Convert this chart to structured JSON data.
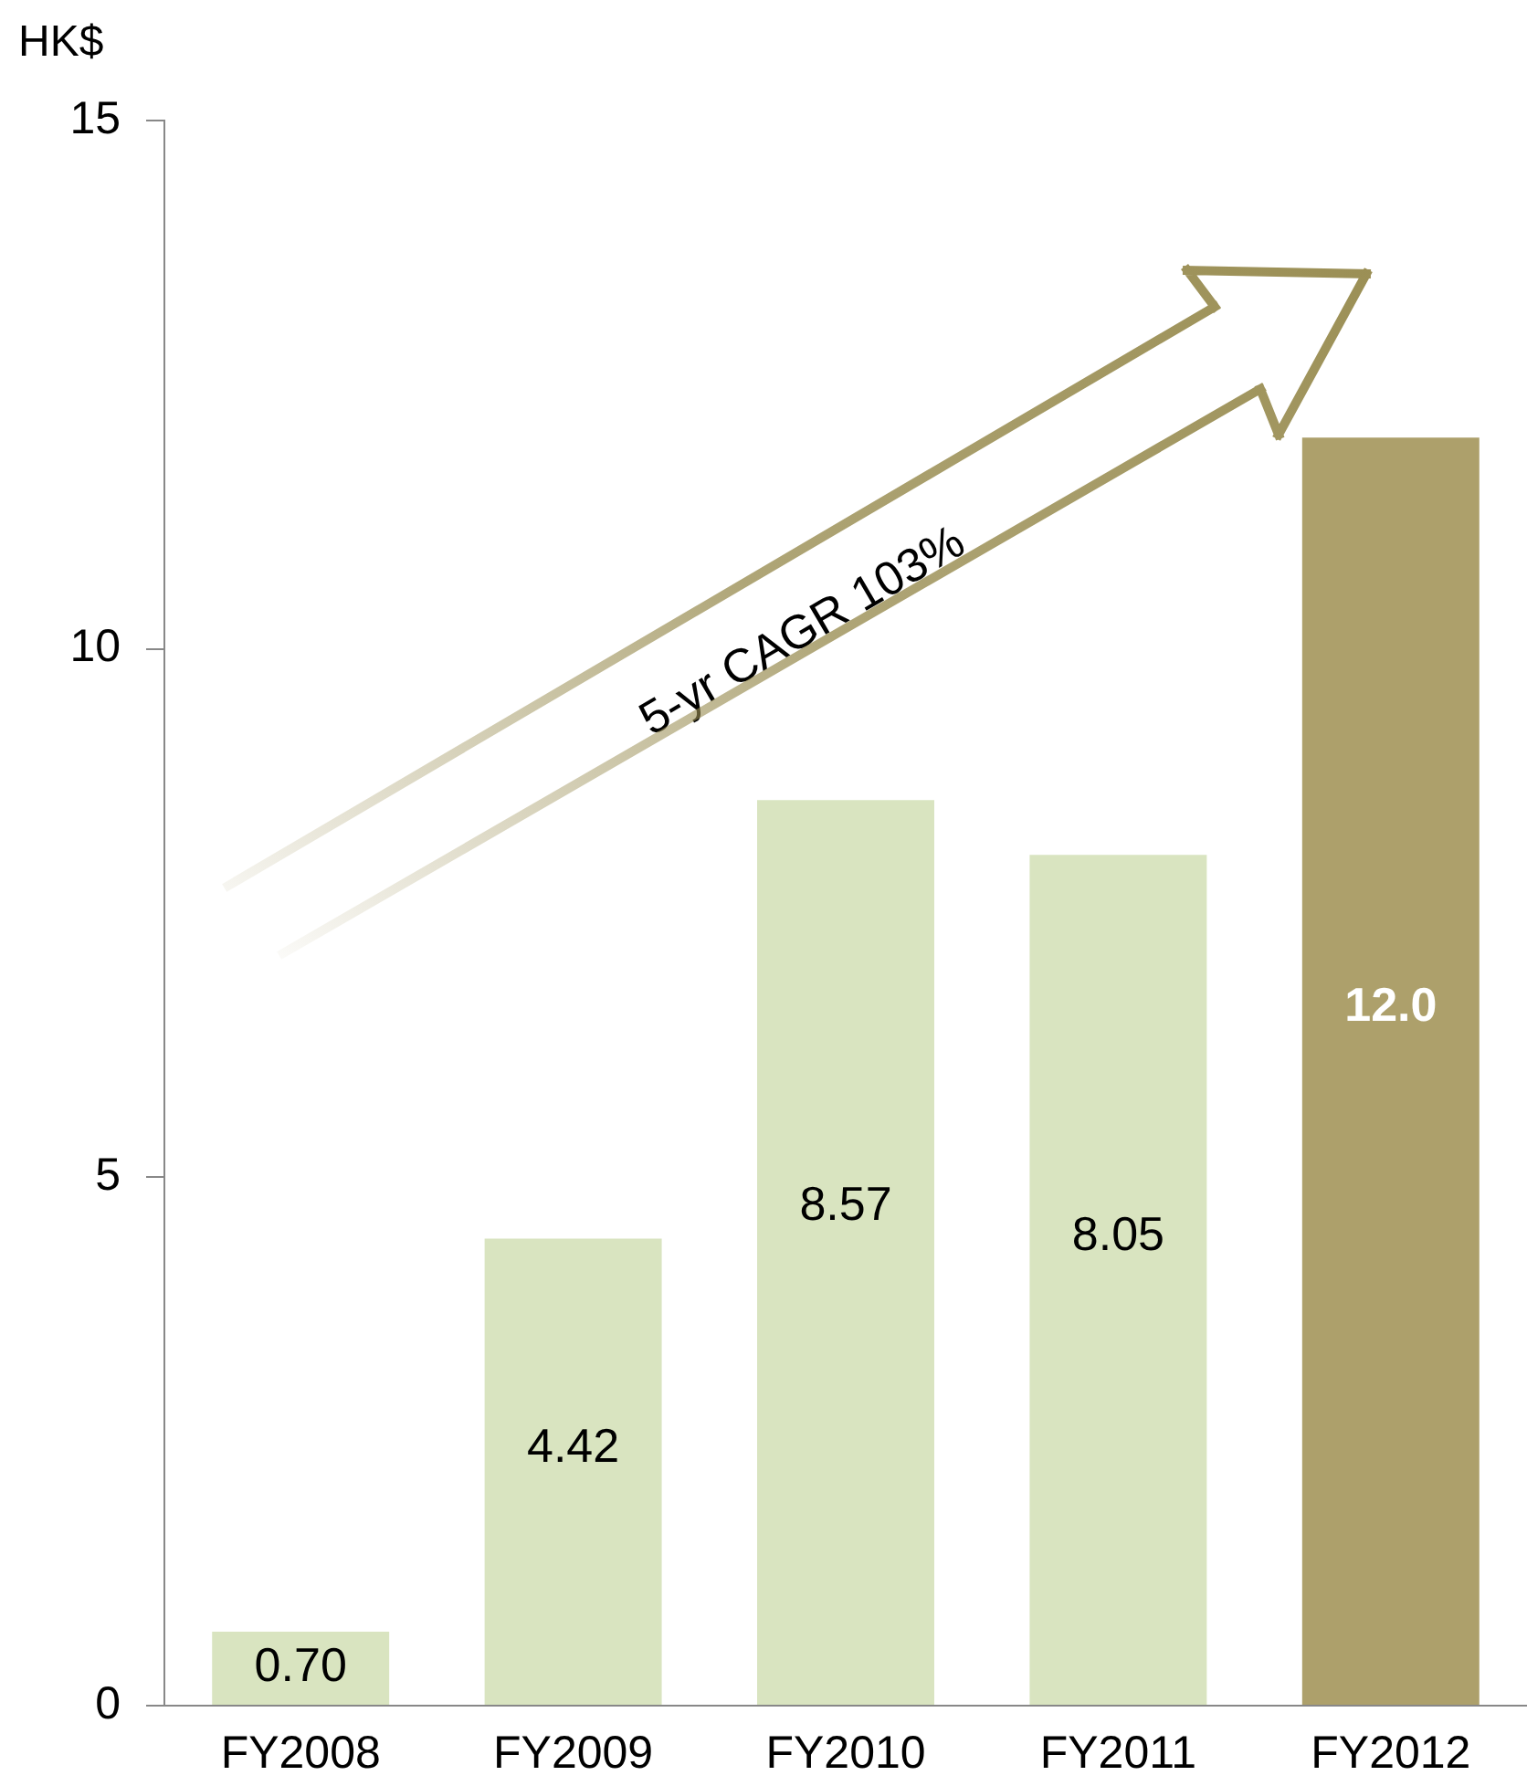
{
  "chart_data": {
    "type": "bar",
    "ylabel": "HK$",
    "categories": [
      "FY2008",
      "FY2009",
      "FY2010",
      "FY2011",
      "FY2012"
    ],
    "values": [
      0.7,
      4.42,
      8.57,
      8.05,
      12.0
    ],
    "colors": [
      "#d9e4c0",
      "#d9e4c0",
      "#d9e4c0",
      "#d9e4c0",
      "#ada06b"
    ],
    "value_labels": [
      "0.70",
      "4.42",
      "8.57",
      "8.05",
      "12.0"
    ],
    "ylim": [
      0,
      15
    ],
    "yticks": [
      0,
      5,
      10,
      15
    ],
    "grid": false,
    "legend": false,
    "annotations": [
      "5-yr CAGR 103%"
    ]
  }
}
